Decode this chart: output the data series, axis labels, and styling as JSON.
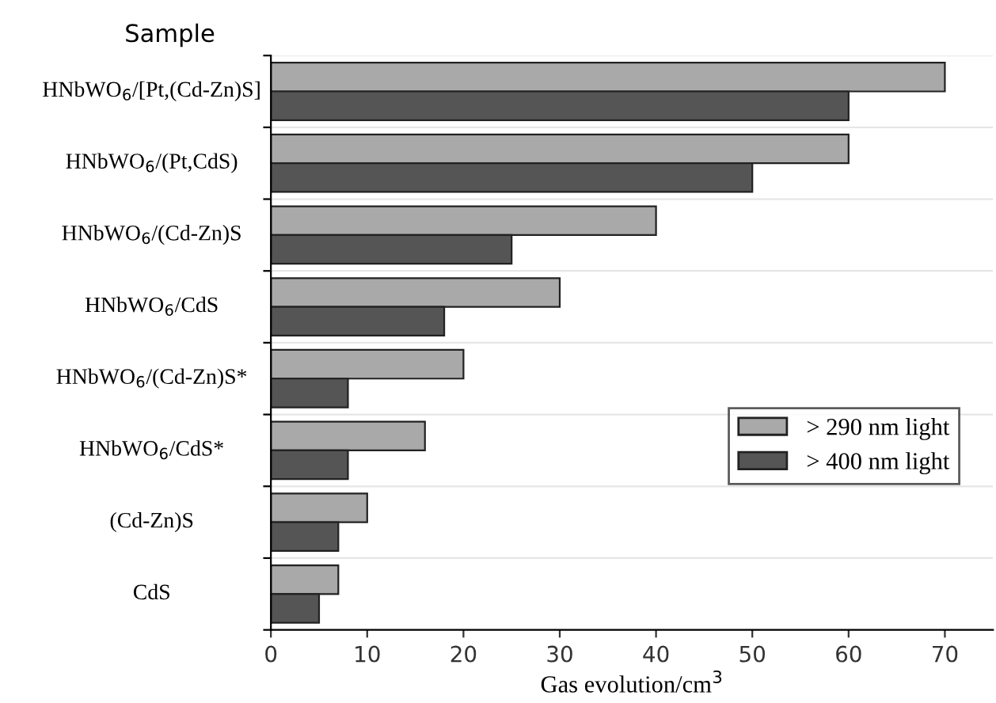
{
  "chart_data": {
    "type": "bar",
    "orientation": "horizontal",
    "ylabel": "Sample",
    "xlabel": "Gas evolution/cm$^{3}$",
    "categories": [
      "HNbWO$_{6}$/[Pt,(Cd-Zn)S]",
      "HNbWO$_{6}$/(Pt,CdS)",
      "HNbWO$_{6}$/(Cd-Zn)S",
      "HNbWO$_{6}$/CdS",
      "HNbWO$_{6}$/(Cd-Zn)S*",
      "HNbWO$_{6}$/CdS*",
      "(Cd-Zn)S",
      "CdS"
    ],
    "series": [
      {
        "name": "> 290 nm light",
        "color": "#a9a9a9",
        "values": [
          70,
          60,
          40,
          30,
          20,
          16,
          10,
          7
        ]
      },
      {
        "name": "> 400 nm light",
        "color": "#555555",
        "values": [
          60,
          50,
          25,
          18,
          8,
          8,
          7,
          5
        ]
      }
    ],
    "xlim": [
      0,
      75
    ],
    "xticks": [
      0,
      10,
      20,
      30,
      40,
      50,
      60,
      70
    ],
    "grid": "y",
    "legend": "right"
  }
}
